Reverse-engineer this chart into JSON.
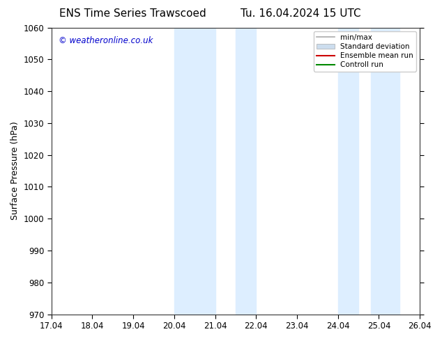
{
  "title_left": "ENS Time Series Trawscoed",
  "title_right": "Tu. 16.04.2024 15 UTC",
  "ylabel": "Surface Pressure (hPa)",
  "ylim": [
    970,
    1060
  ],
  "yticks": [
    970,
    980,
    990,
    1000,
    1010,
    1020,
    1030,
    1040,
    1050,
    1060
  ],
  "xtick_labels": [
    "17.04",
    "18.04",
    "19.04",
    "20.04",
    "21.04",
    "22.04",
    "23.04",
    "24.04",
    "25.04",
    "26.04"
  ],
  "shaded_regions": [
    {
      "xstart": 3.0,
      "xend": 4.0
    },
    {
      "xstart": 4.5,
      "xend": 5.0
    },
    {
      "xstart": 7.0,
      "xend": 7.5
    },
    {
      "xstart": 7.8,
      "xend": 8.5
    }
  ],
  "shaded_color": "#ddeeff",
  "watermark_text": "© weatheronline.co.uk",
  "watermark_color": "#0000cc",
  "legend_entries": [
    {
      "label": "min/max",
      "color": "#aaaaaa",
      "lw": 1.2,
      "type": "line"
    },
    {
      "label": "Standard deviation",
      "color": "#ccddee",
      "lw": 8,
      "type": "patch"
    },
    {
      "label": "Ensemble mean run",
      "color": "#cc0000",
      "lw": 1.5,
      "type": "line"
    },
    {
      "label": "Controll run",
      "color": "#008800",
      "lw": 1.5,
      "type": "line"
    }
  ],
  "bg_color": "#ffffff",
  "title_fontsize": 11,
  "label_fontsize": 9,
  "tick_fontsize": 8.5
}
